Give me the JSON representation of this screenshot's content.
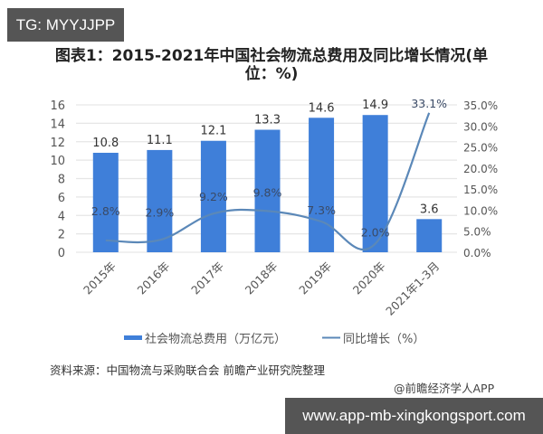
{
  "watermarks": {
    "top_left_badge": "TG: MYYJJPP",
    "bottom_right_badge": "www.app-mb-xingkongsport.com"
  },
  "chart_title": "图表1：2015-2021年中国社会物流总费用及同比增长情况(单位：%)",
  "chart_title_line1": "图表1：2015-2021年中国社会物流总费用及同比增长情况(单",
  "chart_title_line2": "位：%)",
  "legend": {
    "bar_label": "社会物流总费用（万亿元）",
    "line_label": "同比增长（%）"
  },
  "source_text": "资料来源：中国物流与采购联合会 前瞻产业研究院整理",
  "credit_text": "@前瞻经济学人APP",
  "colors": {
    "bar": "#3f7fd9",
    "line": "#5b88b8",
    "grid": "#e6e6e6",
    "axis_text": "#555555",
    "badge_bg": "#555555"
  },
  "chart_data": {
    "type": "bar+line",
    "title": "图表1：2015-2021年中国社会物流总费用及同比增长情况(单位：%)",
    "categories": [
      "2015年",
      "2016年",
      "2017年",
      "2018年",
      "2019年",
      "2020年",
      "2021年1-3月"
    ],
    "series": [
      {
        "name": "社会物流总费用（万亿元）",
        "type": "bar",
        "axis": "left",
        "values": [
          10.8,
          11.1,
          12.1,
          13.3,
          14.6,
          14.9,
          3.6
        ],
        "labels": [
          "10.8",
          "11.1",
          "12.1",
          "13.3",
          "14.6",
          "14.9",
          "3.6"
        ]
      },
      {
        "name": "同比增长（%）",
        "type": "line",
        "axis": "right",
        "values": [
          2.8,
          2.9,
          9.2,
          9.8,
          7.3,
          2.0,
          33.1
        ],
        "labels": [
          "2.8%",
          "2.9%",
          "9.2%",
          "9.8%",
          "7.3%",
          "2.0%",
          "33.1%"
        ],
        "smooth": true
      }
    ],
    "left_axis": {
      "min": 0,
      "max": 16,
      "step": 2,
      "ticks": [
        "0",
        "2",
        "4",
        "6",
        "8",
        "10",
        "12",
        "14",
        "16"
      ]
    },
    "right_axis": {
      "min": 0,
      "max": 35,
      "step": 5,
      "ticks": [
        "0.0%",
        "5.0%",
        "10.0%",
        "15.0%",
        "20.0%",
        "25.0%",
        "30.0%",
        "35.0%"
      ]
    },
    "xlabel": "",
    "ylabel": "",
    "grid": true,
    "legend_position": "bottom"
  }
}
